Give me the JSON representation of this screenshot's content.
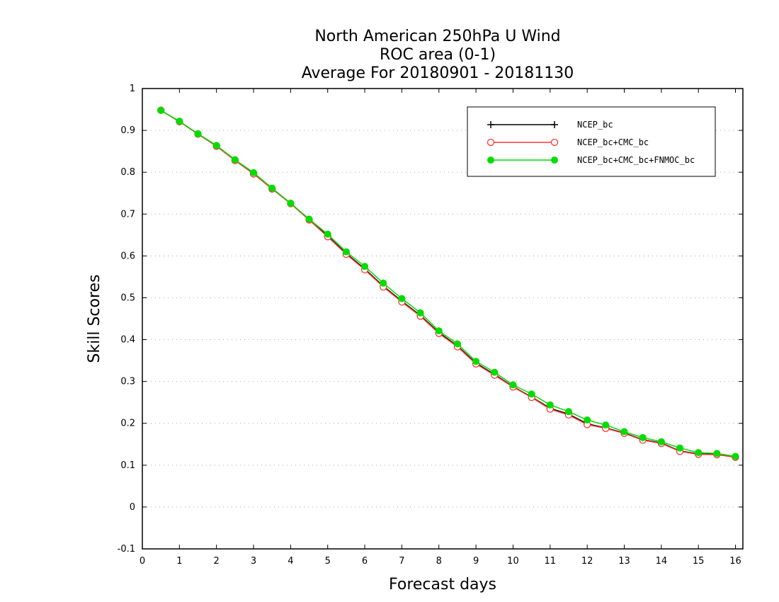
{
  "chart_data": {
    "type": "line",
    "title_lines": [
      "North American 250hPa U Wind",
      "ROC area (0-1)",
      "Average For 20180901 - 20181130"
    ],
    "xlabel": "Forecast days",
    "ylabel": "Skill Scores",
    "xlim": [
      0,
      16.2
    ],
    "ylim": [
      -0.1,
      1
    ],
    "xticks": [
      0,
      1,
      2,
      3,
      4,
      5,
      6,
      7,
      8,
      9,
      10,
      11,
      12,
      13,
      14,
      15,
      16
    ],
    "xtick_labels": [
      "0",
      "1",
      "2",
      "3",
      "4",
      "5",
      "6",
      "7",
      "8",
      "9",
      "10",
      "11",
      "12",
      "13",
      "14",
      "15",
      "16"
    ],
    "yticks": [
      -0.1,
      0,
      0.1,
      0.2,
      0.3,
      0.4,
      0.5,
      0.6,
      0.7,
      0.8,
      0.9,
      1
    ],
    "ytick_labels": [
      "-0.1",
      "0",
      "0.1",
      "0.2",
      "0.3",
      "0.4",
      "0.5",
      "0.6",
      "0.7",
      "0.8",
      "0.9",
      "1"
    ],
    "grid": "horizontal-dotted",
    "legend_position": "top-right",
    "x": [
      0.5,
      1,
      1.5,
      2,
      2.5,
      3,
      3.5,
      4,
      4.5,
      5,
      5.5,
      6,
      6.5,
      7,
      7.5,
      8,
      8.5,
      9,
      9.5,
      10,
      10.5,
      11,
      11.5,
      12,
      12.5,
      13,
      13.5,
      14,
      14.5,
      15,
      15.5,
      16
    ],
    "series": [
      {
        "name": "NCEP_bc",
        "color": "#000000",
        "marker": "plus",
        "values": [
          0.948,
          0.921,
          0.892,
          0.863,
          0.829,
          0.797,
          0.761,
          0.726,
          0.687,
          0.648,
          0.606,
          0.569,
          0.528,
          0.492,
          0.458,
          0.417,
          0.385,
          0.344,
          0.317,
          0.288,
          0.263,
          0.236,
          0.222,
          0.199,
          0.189,
          0.177,
          0.161,
          0.153,
          0.134,
          0.127,
          0.126,
          0.119
        ]
      },
      {
        "name": "NCEP_bc+CMC_bc",
        "color": "#ff3333",
        "marker": "open-circle",
        "values": [
          0.948,
          0.921,
          0.891,
          0.862,
          0.828,
          0.796,
          0.76,
          0.725,
          0.686,
          0.646,
          0.604,
          0.567,
          0.526,
          0.49,
          0.456,
          0.415,
          0.383,
          0.342,
          0.315,
          0.287,
          0.262,
          0.234,
          0.22,
          0.197,
          0.188,
          0.176,
          0.16,
          0.152,
          0.133,
          0.126,
          0.125,
          0.119
        ]
      },
      {
        "name": "NCEP_bc+CMC_bc+FNMOC_bc",
        "color": "#00dd00",
        "marker": "filled-circle",
        "values": [
          0.948,
          0.922,
          0.892,
          0.864,
          0.83,
          0.799,
          0.762,
          0.726,
          0.688,
          0.652,
          0.61,
          0.575,
          0.535,
          0.498,
          0.464,
          0.421,
          0.39,
          0.348,
          0.322,
          0.292,
          0.27,
          0.244,
          0.228,
          0.208,
          0.196,
          0.18,
          0.166,
          0.156,
          0.141,
          0.13,
          0.128,
          0.121
        ]
      }
    ]
  }
}
